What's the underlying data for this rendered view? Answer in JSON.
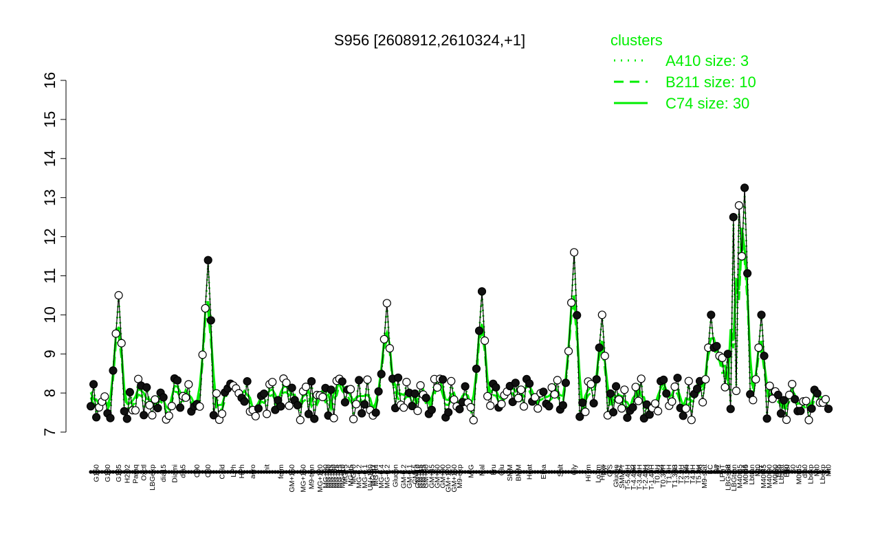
{
  "chart_data": {
    "type": "line",
    "title": "S956 [2608912,2610324,+1]",
    "xlabel": "",
    "ylabel": "",
    "ylim": [
      7,
      16
    ],
    "yticks": [
      7,
      8,
      9,
      10,
      11,
      12,
      13,
      14,
      15,
      16
    ],
    "grid": false,
    "legend": {
      "title": "clusters",
      "placement": "top-right",
      "entries": [
        {
          "label": "A410 size: 3",
          "style": "dotted"
        },
        {
          "label": "B211 size: 10",
          "style": "dashed"
        },
        {
          "label": "C74 size: 30",
          "style": "solid"
        }
      ]
    },
    "colors": {
      "clusters": "#00ee00",
      "main": "#000000"
    },
    "x_count": 265,
    "x_labels": [
      {
        "i": 2,
        "text": "G150"
      },
      {
        "i": 6,
        "text": "G180"
      },
      {
        "i": 10,
        "text": "G135"
      },
      {
        "i": 13,
        "text": "H2O2"
      },
      {
        "i": 16,
        "text": "Paraq"
      },
      {
        "i": 19,
        "text": "Oxctl"
      },
      {
        "i": 22,
        "text": "LBGexp"
      },
      {
        "i": 26,
        "text": "dia15"
      },
      {
        "i": 30,
        "text": "Diami"
      },
      {
        "i": 33,
        "text": "dia5"
      },
      {
        "i": 38,
        "text": "C90"
      },
      {
        "i": 42,
        "text": "C30"
      },
      {
        "i": 47,
        "text": "Cold"
      },
      {
        "i": 51,
        "text": "LPh"
      },
      {
        "i": 54,
        "text": "HPh"
      },
      {
        "i": 58,
        "text": "aero"
      },
      {
        "i": 63,
        "text": "nit"
      },
      {
        "i": 68,
        "text": "ferm"
      },
      {
        "i": 72,
        "text": "GM+150"
      },
      {
        "i": 76,
        "text": "MG+150"
      },
      {
        "i": 79,
        "text": "M9-tran"
      },
      {
        "i": 82,
        "text": "MG+120"
      },
      {
        "i": 84,
        "text": "MG+90"
      },
      {
        "i": 85,
        "text": "MG+60"
      },
      {
        "i": 86,
        "text": "MG+45"
      },
      {
        "i": 87,
        "text": "MG+30"
      },
      {
        "i": 88,
        "text": "MG+25"
      },
      {
        "i": 89,
        "text": "MG+15"
      },
      {
        "i": 90,
        "text": "MG+10"
      },
      {
        "i": 91,
        "text": "MG+5"
      },
      {
        "i": 93,
        "text": "MG+t5"
      },
      {
        "i": 94,
        "text": "MG+0"
      },
      {
        "i": 96,
        "text": "MG-0.2"
      },
      {
        "i": 98,
        "text": "MG-0.1"
      },
      {
        "i": 100,
        "text": "UV+120"
      },
      {
        "i": 101,
        "text": "MG+t2"
      },
      {
        "i": 102,
        "text": "MG+t4"
      },
      {
        "i": 104,
        "text": "MG-0.4"
      },
      {
        "i": 106,
        "text": "MG-0.2"
      },
      {
        "i": 109,
        "text": "Glucon"
      },
      {
        "i": 112,
        "text": "GM-0.2"
      },
      {
        "i": 114,
        "text": "GM-0.1"
      },
      {
        "i": 116,
        "text": "GM+5"
      },
      {
        "i": 117,
        "text": "GM+10"
      },
      {
        "i": 118,
        "text": "GM+15"
      },
      {
        "i": 119,
        "text": "GM+25"
      },
      {
        "i": 120,
        "text": "GM+30"
      },
      {
        "i": 122,
        "text": "GM+45"
      },
      {
        "i": 124,
        "text": "GM+60"
      },
      {
        "i": 126,
        "text": "GM+90"
      },
      {
        "i": 128,
        "text": "GM+120"
      },
      {
        "i": 130,
        "text": "GM+150"
      },
      {
        "i": 132,
        "text": "M9-exp"
      },
      {
        "i": 136,
        "text": "M/G"
      },
      {
        "i": 140,
        "text": "Mal"
      },
      {
        "i": 144,
        "text": "Fru"
      },
      {
        "i": 147,
        "text": "Glu"
      },
      {
        "i": 150,
        "text": "SMM"
      },
      {
        "i": 153,
        "text": "BMM"
      },
      {
        "i": 157,
        "text": "Heat"
      },
      {
        "i": 162,
        "text": "Etha"
      },
      {
        "i": 168,
        "text": "Salt"
      },
      {
        "i": 173,
        "text": "Gly"
      },
      {
        "i": 178,
        "text": "HiTm"
      },
      {
        "i": 183,
        "text": "HiOs"
      },
      {
        "i": 189,
        "text": "S1"
      },
      {
        "i": 194,
        "text": "S2"
      },
      {
        "i": 199,
        "text": "S3"
      },
      {
        "i": 204,
        "text": "S4"
      },
      {
        "i": 209,
        "text": "S3"
      },
      {
        "i": 213,
        "text": "S5"
      },
      {
        "i": 218,
        "text": "S6"
      },
      {
        "i": 224,
        "text": "S7"
      },
      {
        "i": 228,
        "text": "S8"
      },
      {
        "i": 234,
        "text": "S6"
      },
      {
        "i": 240,
        "text": "BT"
      },
      {
        "i": 246,
        "text": "B36"
      },
      {
        "i": 249,
        "text": "B60"
      }
    ],
    "x_labels_right": [
      {
        "i": 0,
        "text": "LoTm"
      },
      {
        "i": 1,
        "text": "Pyr"
      },
      {
        "i": 2,
        "text": "G/S"
      },
      {
        "i": 3,
        "text": "Glucon"
      },
      {
        "i": 4,
        "text": "SMMPr"
      },
      {
        "i": 5,
        "text": "T-5.40H"
      },
      {
        "i": 6,
        "text": "T-4.40H"
      },
      {
        "i": 7,
        "text": "T-3.40H"
      },
      {
        "i": 8,
        "text": "T-2.40H"
      },
      {
        "i": 9,
        "text": "T-1.40H"
      },
      {
        "i": 10,
        "text": "T0.0H"
      },
      {
        "i": 11,
        "text": "T0.30H"
      },
      {
        "i": 12,
        "text": "T1.0H"
      },
      {
        "i": 13,
        "text": "T1.30H"
      },
      {
        "i": 14,
        "text": "T2.0H"
      },
      {
        "i": 15,
        "text": "T3.0H"
      },
      {
        "i": 16,
        "text": "T4.0H"
      },
      {
        "i": 17,
        "text": "T5.0H"
      },
      {
        "i": 18,
        "text": "M9-stat"
      },
      {
        "i": 19,
        "text": "BC"
      },
      {
        "i": 20,
        "text": "Sw"
      },
      {
        "i": 21,
        "text": "LPhT"
      },
      {
        "i": 22,
        "text": "LBGstat"
      },
      {
        "i": 23,
        "text": "LBGtran"
      },
      {
        "i": 24,
        "text": "M40t45"
      },
      {
        "i": 25,
        "text": "M0t45"
      },
      {
        "i": 26,
        "text": "Lbtran"
      },
      {
        "i": 27,
        "text": "Mt0"
      },
      {
        "i": 28,
        "text": "M40t45"
      },
      {
        "i": 29,
        "text": "M40t90"
      },
      {
        "i": 30,
        "text": "M0t90"
      },
      {
        "i": 31,
        "text": "Lbstat"
      },
      {
        "i": 32,
        "text": "BI"
      },
      {
        "i": 33,
        "text": "S0"
      },
      {
        "i": 34,
        "text": "M0t45"
      },
      {
        "i": 35,
        "text": "dia0"
      },
      {
        "i": 36,
        "text": "Lbexp"
      },
      {
        "i": 37,
        "text": "Mt0"
      },
      {
        "i": 38,
        "text": "Lbexp"
      },
      {
        "i": 39,
        "text": "Mt0"
      }
    ],
    "x_labels_right_x_range": [
      870,
      1205
    ],
    "main_series_name": "",
    "peaks": [
      {
        "label": "G135",
        "value": 10.5
      },
      {
        "label": "C30",
        "value": 11.4
      },
      {
        "label": "MG-0.2",
        "value": 10.3
      },
      {
        "label": "Mal",
        "value": 10.6
      },
      {
        "label": "Gly",
        "value": 11.6
      },
      {
        "label": "HiOs",
        "value": 10.0
      },
      {
        "label": "S6",
        "value": 13.25
      },
      {
        "label": "BT",
        "value": 10.0
      },
      {
        "label": "BC",
        "value": 10.0
      },
      {
        "label": "Sw",
        "value": 10.0
      }
    ]
  }
}
